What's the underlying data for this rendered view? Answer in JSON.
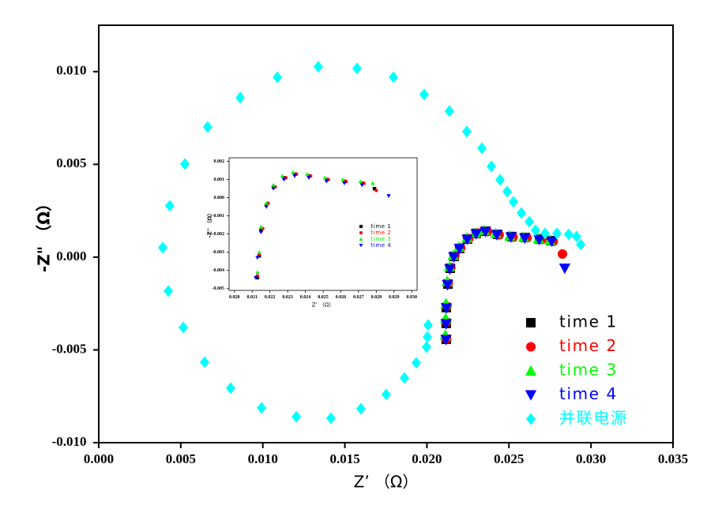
{
  "chart_data": [
    {
      "type": "scatter",
      "xlabel": "Z’ （Ω）",
      "ylabel": "-Z\" （Ω）",
      "xlim": [
        0,
        0.035
      ],
      "ylim": [
        -0.01,
        0.0125
      ],
      "xticks": [
        {
          "value": 0,
          "label": "0.000"
        },
        {
          "value": 0.005,
          "label": "0.005"
        },
        {
          "value": 0.01,
          "label": "0.010"
        },
        {
          "value": 0.015,
          "label": "0.015"
        },
        {
          "value": 0.02,
          "label": "0.020"
        },
        {
          "value": 0.025,
          "label": "0.025"
        },
        {
          "value": 0.03,
          "label": "0.030"
        },
        {
          "value": 0.035,
          "label": "0.035"
        }
      ],
      "yticks": [
        {
          "value": -0.01,
          "label": "-0.010"
        },
        {
          "value": -0.005,
          "label": "-0.005"
        },
        {
          "value": 0,
          "label": "0.000"
        },
        {
          "value": 0.005,
          "label": "0.005"
        },
        {
          "value": 0.01,
          "label": "0.010"
        }
      ],
      "legend": "lower right",
      "series": [
        {
          "name": "time 1",
          "color": "#000000",
          "marker": "square",
          "x": [
            0.02118,
            0.02118,
            0.02118,
            0.02128,
            0.02142,
            0.02166,
            0.022,
            0.02248,
            0.02301,
            0.02359,
            0.02431,
            0.02517,
            0.02599,
            0.02686,
            0.02758
          ],
          "values": [
            -0.00443,
            -0.00357,
            -0.00272,
            -0.00145,
            -0.0006,
            4e-05,
            0.00047,
            0.00098,
            0.00128,
            0.0014,
            0.00123,
            0.00111,
            0.00106,
            0.00098,
            0.00089
          ]
        },
        {
          "name": "time 2",
          "color": "#ff0000",
          "marker": "circle",
          "x": [
            0.0212,
            0.0212,
            0.02122,
            0.0213,
            0.02146,
            0.0217,
            0.02206,
            0.02255,
            0.0231,
            0.0237,
            0.0244,
            0.02525,
            0.0261,
            0.027,
            0.0277,
            0.02826
          ],
          "values": [
            -0.0044,
            -0.0035,
            -0.00265,
            -0.0014,
            -0.00055,
            8e-05,
            0.0005,
            0.001,
            0.0013,
            0.00138,
            0.0012,
            0.00108,
            0.00104,
            0.00095,
            0.00085,
            0.00017
          ]
        },
        {
          "name": "time 3",
          "color": "#00ff00",
          "marker": "triangle-up",
          "x": [
            0.02112,
            0.02114,
            0.02116,
            0.02124,
            0.02138,
            0.0216,
            0.02196,
            0.02244,
            0.02296,
            0.0235,
            0.0242,
            0.02505,
            0.0259,
            0.0268,
            0.0275
          ],
          "values": [
            -0.0042,
            -0.0033,
            -0.0025,
            -0.0013,
            -0.0005,
            0.0001,
            0.00055,
            0.00105,
            0.00132,
            0.00145,
            0.00128,
            0.00115,
            0.00108,
            0.001,
            0.00092
          ]
        },
        {
          "name": "time 4",
          "color": "#0000ff",
          "marker": "triangle-down",
          "x": [
            0.02116,
            0.02117,
            0.02119,
            0.02126,
            0.0214,
            0.02164,
            0.02198,
            0.02246,
            0.023,
            0.02356,
            0.02426,
            0.02512,
            0.02596,
            0.02684,
            0.0276,
            0.0284
          ],
          "values": [
            -0.00445,
            -0.0036,
            -0.00275,
            -0.0015,
            -0.00065,
            0,
            0.00045,
            0.00095,
            0.00125,
            0.00137,
            0.0012,
            0.00108,
            0.00102,
            0.00094,
            0.00085,
            -0.0006
          ]
        },
        {
          "name": "并联电源",
          "color": "#00ffff",
          "marker": "diamond",
          "x": [
            0.01338,
            0.01574,
            0.01796,
            0.01983,
            0.02137,
            0.02243,
            0.02335,
            0.02393,
            0.02446,
            0.02489,
            0.02527,
            0.02576,
            0.02624,
            0.02662,
            0.0272,
            0.02792,
            0.02864,
            0.02912,
            0.02937,
            0.02007,
            0.02003,
            0.01998,
            0.01935,
            0.01863,
            0.01752,
            0.01598,
            0.01415,
            0.01204,
            0.00992,
            0.00804,
            0.00645,
            0.00515,
            0.00424,
            0.0039,
            0.00433,
            0.00525,
            0.00664,
            0.00862,
            0.01088
          ],
          "values": [
            0.01026,
            0.01017,
            0.0097,
            0.00877,
            0.00787,
            0.00677,
            0.00587,
            0.00489,
            0.00417,
            0.00353,
            0.00298,
            0.00238,
            0.00191,
            0.00145,
            0.00128,
            0.00128,
            0.00123,
            0.00111,
            0.00068,
            -0.00366,
            -0.0043,
            -0.00485,
            -0.0057,
            -0.00651,
            -0.0074,
            -0.00817,
            -0.00868,
            -0.0086,
            -0.00813,
            -0.00706,
            -0.00566,
            -0.00379,
            -0.00183,
            0.00051,
            0.00277,
            0.00502,
            0.00702,
            0.0086,
            0.0097
          ]
        }
      ]
    },
    {
      "type": "scatter",
      "xlabel": "Z’ （Ω）",
      "ylabel": "-Z'' （Ω）",
      "xlim": [
        0.0197,
        0.0303
      ],
      "ylim": [
        -0.0051,
        0.0022
      ],
      "xticks": [
        {
          "value": 0.02,
          "label": "0.020"
        },
        {
          "value": 0.021,
          "label": "0.021"
        },
        {
          "value": 0.022,
          "label": "0.022"
        },
        {
          "value": 0.023,
          "label": "0.023"
        },
        {
          "value": 0.024,
          "label": "0.024"
        },
        {
          "value": 0.025,
          "label": "0.025"
        },
        {
          "value": 0.026,
          "label": "0.026"
        },
        {
          "value": 0.027,
          "label": "0.027"
        },
        {
          "value": 0.028,
          "label": "0.028"
        },
        {
          "value": 0.029,
          "label": "0.029"
        },
        {
          "value": 0.03,
          "label": "0.030"
        }
      ],
      "yticks": [
        {
          "value": -0.005,
          "label": "-0.005"
        },
        {
          "value": -0.004,
          "label": "-0.004"
        },
        {
          "value": -0.003,
          "label": "-0.003"
        },
        {
          "value": -0.002,
          "label": "-0.002"
        },
        {
          "value": -0.001,
          "label": "-0.001"
        },
        {
          "value": 0,
          "label": "0.000"
        },
        {
          "value": 0.001,
          "label": "0.001"
        },
        {
          "value": 0.002,
          "label": "0.002"
        }
      ],
      "legend": "center right",
      "series": [
        {
          "name": "time 1",
          "color": "#000000",
          "marker": "square",
          "x": [
            0.0213,
            0.0214,
            0.0215,
            0.0218,
            0.0222,
            0.0228,
            0.0234,
            0.0242,
            0.0252,
            0.0262,
            0.0272,
            0.0279
          ],
          "values": [
            -0.0044,
            -0.0032,
            -0.0018,
            -0.0004,
            0.0006,
            0.0011,
            0.0013,
            0.0012,
            0.001,
            0.0009,
            0.0008,
            0.0005
          ]
        },
        {
          "name": "time 2",
          "color": "#ff0000",
          "marker": "circle",
          "x": [
            0.0213,
            0.0214,
            0.0216,
            0.0219,
            0.0223,
            0.0229,
            0.0235,
            0.0243,
            0.0253,
            0.0263,
            0.0273,
            0.028
          ],
          "values": [
            -0.0043,
            -0.0031,
            -0.0017,
            -0.0003,
            0.0006,
            0.0011,
            0.0013,
            0.0012,
            0.001,
            0.0009,
            0.0008,
            0.0004
          ]
        },
        {
          "name": "time 3",
          "color": "#00ff00",
          "marker": "triangle-up",
          "x": [
            0.0213,
            0.0214,
            0.0215,
            0.0218,
            0.0222,
            0.0227,
            0.0233,
            0.0241,
            0.0251,
            0.0261,
            0.0271,
            0.0278
          ],
          "values": [
            -0.0041,
            -0.003,
            -0.0016,
            -0.0003,
            0.0007,
            0.0012,
            0.0014,
            0.0013,
            0.0011,
            0.001,
            0.0009,
            0.0008
          ]
        },
        {
          "name": "time 4",
          "color": "#0000ff",
          "marker": "triangle-down",
          "x": [
            0.0212,
            0.0213,
            0.0215,
            0.0218,
            0.0222,
            0.0228,
            0.0234,
            0.0242,
            0.0252,
            0.0262,
            0.0272,
            0.0287
          ],
          "values": [
            -0.0044,
            -0.0033,
            -0.0019,
            -0.0005,
            0.0005,
            0.001,
            0.0012,
            0.0011,
            0.0009,
            0.0008,
            0.0007,
            0.0001
          ]
        }
      ]
    }
  ]
}
